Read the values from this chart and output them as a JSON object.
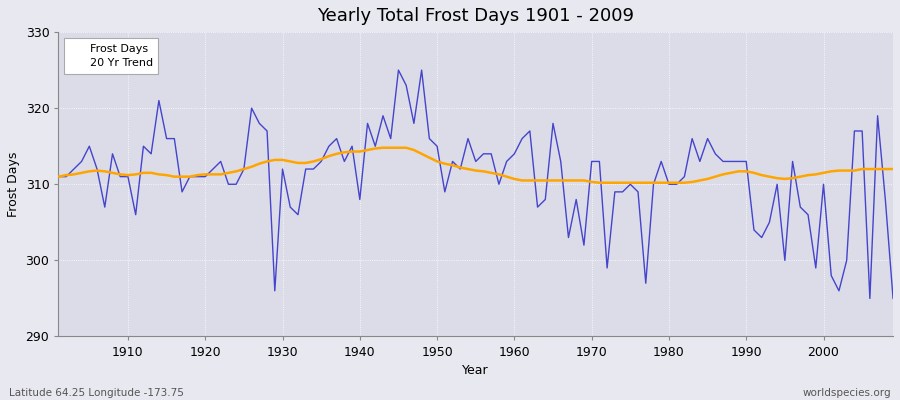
{
  "title": "Yearly Total Frost Days 1901 - 2009",
  "xlabel": "Year",
  "ylabel": "Frost Days",
  "subtitle": "Latitude 64.25 Longitude -173.75",
  "watermark": "worldspecies.org",
  "ylim": [
    290,
    330
  ],
  "xlim": [
    1901,
    2009
  ],
  "yticks": [
    290,
    300,
    310,
    320,
    330
  ],
  "xticks": [
    1910,
    1920,
    1930,
    1940,
    1950,
    1960,
    1970,
    1980,
    1990,
    2000
  ],
  "line_color": "#4444cc",
  "trend_color": "#ffa500",
  "plot_bg_color": "#dcdce8",
  "outer_bg_color": "#e8e8f0",
  "frost_days": {
    "1901": 311,
    "1902": 311,
    "1903": 312,
    "1904": 313,
    "1905": 315,
    "1906": 312,
    "1907": 307,
    "1908": 314,
    "1909": 311,
    "1910": 311,
    "1911": 306,
    "1912": 315,
    "1913": 314,
    "1914": 321,
    "1915": 316,
    "1916": 316,
    "1917": 309,
    "1918": 311,
    "1919": 311,
    "1920": 311,
    "1921": 312,
    "1922": 313,
    "1923": 310,
    "1924": 310,
    "1925": 312,
    "1926": 320,
    "1927": 318,
    "1928": 317,
    "1929": 296,
    "1930": 312,
    "1931": 307,
    "1932": 306,
    "1933": 312,
    "1934": 312,
    "1935": 313,
    "1936": 315,
    "1937": 316,
    "1938": 313,
    "1939": 315,
    "1940": 308,
    "1941": 318,
    "1942": 315,
    "1943": 319,
    "1944": 316,
    "1945": 325,
    "1946": 323,
    "1947": 318,
    "1948": 325,
    "1949": 316,
    "1950": 315,
    "1951": 309,
    "1952": 313,
    "1953": 312,
    "1954": 316,
    "1955": 313,
    "1956": 314,
    "1957": 314,
    "1958": 310,
    "1959": 313,
    "1960": 314,
    "1961": 316,
    "1962": 317,
    "1963": 307,
    "1964": 308,
    "1965": 318,
    "1966": 313,
    "1967": 303,
    "1968": 308,
    "1969": 302,
    "1970": 313,
    "1971": 313,
    "1972": 299,
    "1973": 309,
    "1974": 309,
    "1975": 310,
    "1976": 309,
    "1977": 297,
    "1978": 310,
    "1979": 313,
    "1980": 310,
    "1981": 310,
    "1982": 311,
    "1983": 316,
    "1984": 313,
    "1985": 316,
    "1986": 314,
    "1987": 313,
    "1988": 313,
    "1989": 313,
    "1990": 313,
    "1991": 304,
    "1992": 303,
    "1993": 305,
    "1994": 310,
    "1995": 300,
    "1996": 313,
    "1997": 307,
    "1998": 306,
    "1999": 299,
    "2000": 310,
    "2001": 298,
    "2002": 296,
    "2003": 300,
    "2004": 317,
    "2005": 317,
    "2006": 295,
    "2007": 319,
    "2008": 308,
    "2009": 295
  },
  "trend_days": {
    "1901": 311.0,
    "1902": 311.2,
    "1903": 311.3,
    "1904": 311.5,
    "1905": 311.7,
    "1906": 311.8,
    "1907": 311.7,
    "1908": 311.5,
    "1909": 311.3,
    "1910": 311.2,
    "1911": 311.3,
    "1912": 311.5,
    "1913": 311.5,
    "1914": 311.3,
    "1915": 311.2,
    "1916": 311.0,
    "1917": 311.0,
    "1918": 311.0,
    "1919": 311.2,
    "1920": 311.3,
    "1921": 311.3,
    "1922": 311.3,
    "1923": 311.5,
    "1924": 311.7,
    "1925": 312.0,
    "1926": 312.3,
    "1927": 312.7,
    "1928": 313.0,
    "1929": 313.2,
    "1930": 313.2,
    "1931": 313.0,
    "1932": 312.8,
    "1933": 312.8,
    "1934": 313.0,
    "1935": 313.3,
    "1936": 313.7,
    "1937": 314.0,
    "1938": 314.2,
    "1939": 314.3,
    "1940": 314.3,
    "1941": 314.5,
    "1942": 314.7,
    "1943": 314.8,
    "1944": 314.8,
    "1945": 314.8,
    "1946": 314.8,
    "1947": 314.5,
    "1948": 314.0,
    "1949": 313.5,
    "1950": 313.0,
    "1951": 312.7,
    "1952": 312.5,
    "1953": 312.2,
    "1954": 312.0,
    "1955": 311.8,
    "1956": 311.7,
    "1957": 311.5,
    "1958": 311.3,
    "1959": 311.0,
    "1960": 310.7,
    "1961": 310.5,
    "1962": 310.5,
    "1963": 310.5,
    "1964": 310.5,
    "1965": 310.5,
    "1966": 310.5,
    "1967": 310.5,
    "1968": 310.5,
    "1969": 310.5,
    "1970": 310.3,
    "1971": 310.2,
    "1972": 310.2,
    "1973": 310.2,
    "1974": 310.2,
    "1975": 310.2,
    "1976": 310.2,
    "1977": 310.2,
    "1978": 310.2,
    "1979": 310.2,
    "1980": 310.2,
    "1981": 310.2,
    "1982": 310.2,
    "1983": 310.3,
    "1984": 310.5,
    "1985": 310.7,
    "1986": 311.0,
    "1987": 311.3,
    "1988": 311.5,
    "1989": 311.7,
    "1990": 311.7,
    "1991": 311.5,
    "1992": 311.2,
    "1993": 311.0,
    "1994": 310.8,
    "1995": 310.7,
    "1996": 310.8,
    "1997": 311.0,
    "1998": 311.2,
    "1999": 311.3,
    "2000": 311.5,
    "2001": 311.7,
    "2002": 311.8,
    "2003": 311.8,
    "2004": 311.8,
    "2005": 312.0,
    "2006": 312.0,
    "2007": 312.0,
    "2008": 312.0,
    "2009": 312.0
  }
}
